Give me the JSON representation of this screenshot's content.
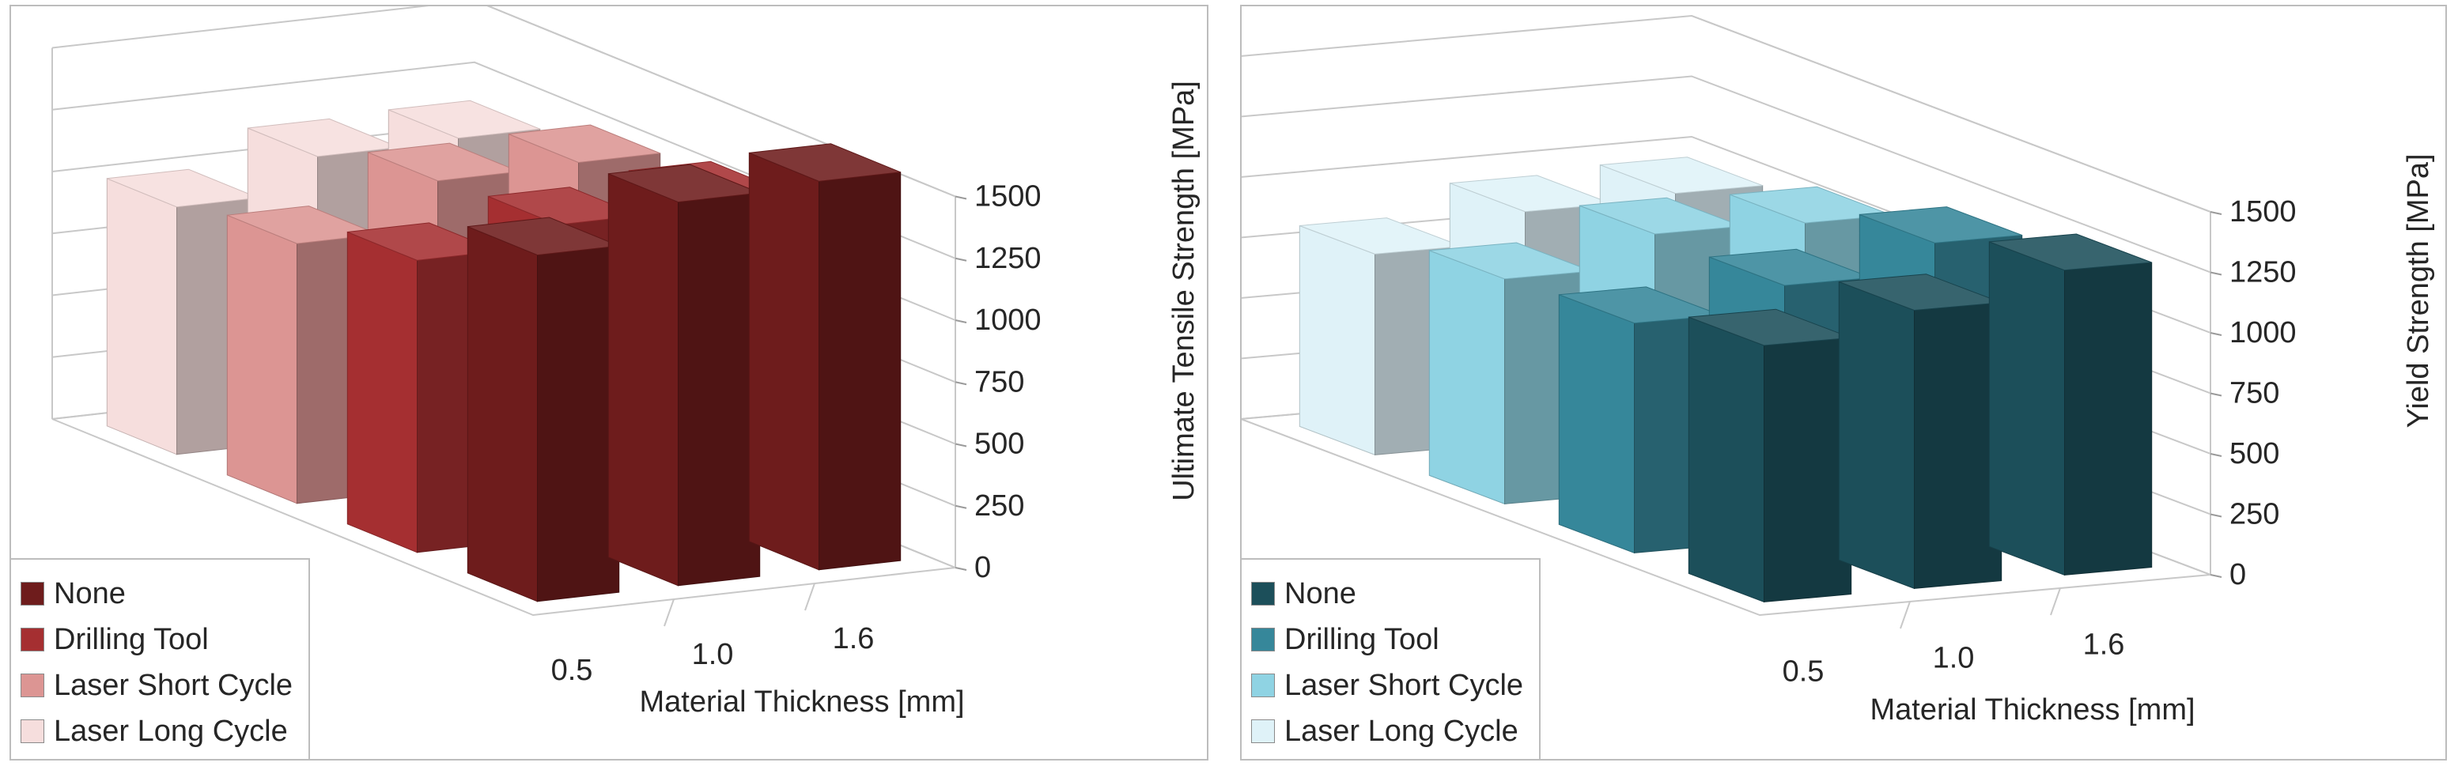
{
  "chart_data": [
    {
      "type": "bar3d",
      "title": "",
      "xlabel": "Material Thickness [mm]",
      "ylabel": "Ultimate Tensile Strength [MPa]",
      "categories": [
        "0.5",
        "1.0",
        "1.6"
      ],
      "yticks": [
        "0",
        "250",
        "500",
        "750",
        "1000",
        "1250",
        "1500"
      ],
      "ylim": [
        0,
        1500
      ],
      "legend_position": "bottom-left",
      "series": [
        {
          "name": "None",
          "color": "#6e1c1c",
          "values": [
            1400,
            1550,
            1570
          ]
        },
        {
          "name": "Drilling Tool",
          "color": "#a52f31",
          "values": [
            1180,
            1260,
            1300
          ]
        },
        {
          "name": "Laser Short Cycle",
          "color": "#dc9593",
          "values": [
            1050,
            1240,
            1250
          ]
        },
        {
          "name": "Laser Long Cycle",
          "color": "#f6dedd",
          "values": [
            1000,
            1140,
            1150
          ]
        }
      ]
    },
    {
      "type": "bar3d",
      "title": "",
      "xlabel": "Material Thickness [mm]",
      "ylabel": "Yield Strength [MPa]",
      "categories": [
        "0.5",
        "1.0",
        "1.6"
      ],
      "yticks": [
        "0",
        "250",
        "500",
        "750",
        "1000",
        "1250",
        "1500"
      ],
      "ylim": [
        0,
        1500
      ],
      "legend_position": "bottom-left",
      "series": [
        {
          "name": "None",
          "color": "#1c4f5a",
          "values": [
            1060,
            1150,
            1260
          ]
        },
        {
          "name": "Drilling Tool",
          "color": "#36879a",
          "values": [
            950,
            1050,
            1170
          ]
        },
        {
          "name": "Laser Short Cycle",
          "color": "#8fd3e3",
          "values": [
            930,
            1060,
            1050
          ]
        },
        {
          "name": "Laser Long Cycle",
          "color": "#dff2f8",
          "values": [
            830,
            950,
            970
          ]
        }
      ]
    }
  ]
}
